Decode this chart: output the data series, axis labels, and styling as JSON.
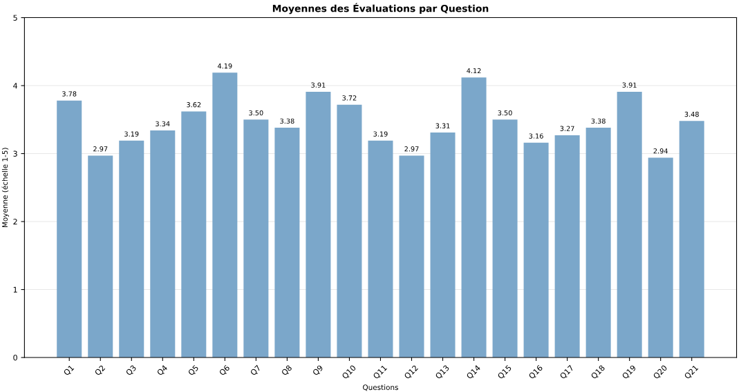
{
  "chart_data": {
    "type": "bar",
    "title": "Moyennes des Évaluations par Question",
    "xlabel": "Questions",
    "ylabel": "Moyenne (échelle 1-5)",
    "categories": [
      "Q1",
      "Q2",
      "Q3",
      "Q4",
      "Q5",
      "Q6",
      "Q7",
      "Q8",
      "Q9",
      "Q10",
      "Q11",
      "Q12",
      "Q13",
      "Q14",
      "Q15",
      "Q16",
      "Q17",
      "Q18",
      "Q19",
      "Q20",
      "Q21"
    ],
    "values": [
      3.78,
      2.97,
      3.19,
      3.34,
      3.62,
      4.19,
      3.5,
      3.38,
      3.91,
      3.72,
      3.19,
      2.97,
      3.31,
      4.12,
      3.5,
      3.16,
      3.27,
      3.38,
      3.91,
      2.94,
      3.48
    ],
    "value_labels": [
      "3.78",
      "2.97",
      "3.19",
      "3.34",
      "3.62",
      "4.19",
      "3.50",
      "3.38",
      "3.91",
      "3.72",
      "3.19",
      "2.97",
      "3.31",
      "4.12",
      "3.50",
      "3.16",
      "3.27",
      "3.38",
      "3.91",
      "2.94",
      "3.48"
    ],
    "color": "#7ba7ca",
    "ylim": [
      0,
      5
    ],
    "yticks": [
      0,
      1,
      2,
      3,
      4,
      5
    ],
    "grid": "y"
  }
}
